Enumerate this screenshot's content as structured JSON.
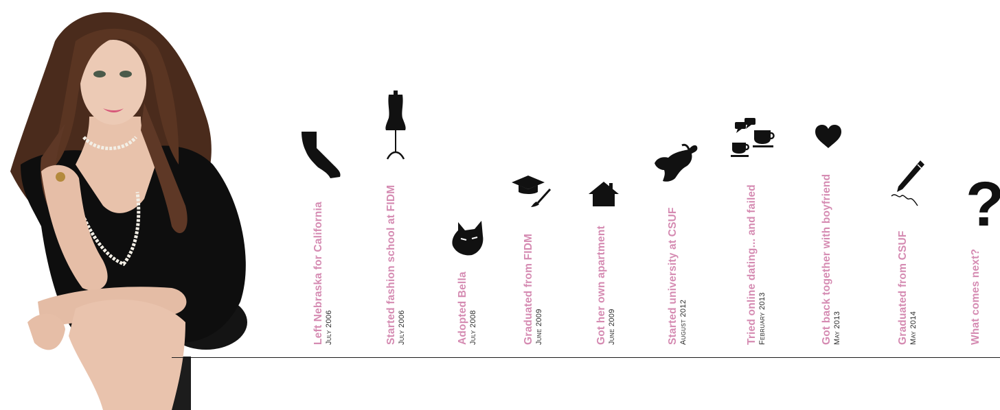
{
  "milestones": [
    {
      "title": "Left Nebraska for California",
      "date": "July 2006",
      "icon": "california-state-icon"
    },
    {
      "title": "Started fashion school at FIDM",
      "date": "July 2006",
      "icon": "dress-form-icon"
    },
    {
      "title": "Adopted Bella",
      "date": "July 2008",
      "icon": "cat-icon"
    },
    {
      "title": "Graduated from FIDM",
      "date": "June 2009",
      "icon": "graduation-cap-brush-icon"
    },
    {
      "title": "Got her own apartment",
      "date": "June 2009",
      "icon": "house-icon"
    },
    {
      "title": "Started university at CSUF",
      "date": "August 2012",
      "icon": "elephant-icon"
    },
    {
      "title": "Tried online dating... and failed",
      "date": "February 2013",
      "icon": "chat-coffee-icon"
    },
    {
      "title": "Got back together with boyfriend",
      "date": "May 2013",
      "icon": "heart-icon"
    },
    {
      "title": "Graduated from CSUF",
      "date": "May 2014",
      "icon": "pen-signature-icon"
    },
    {
      "title": "What comes next?",
      "date": "",
      "icon": "question-mark-icon",
      "glyph": "?"
    }
  ],
  "colors": {
    "title": "#d58bb2",
    "date": "#2b2b2b",
    "icon": "#111111",
    "line": "#1a1a1a"
  }
}
